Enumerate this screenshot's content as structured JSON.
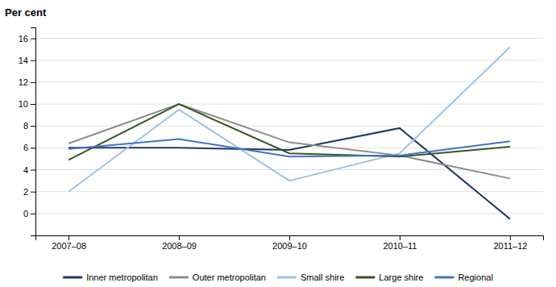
{
  "chart_data": {
    "type": "line",
    "ylabel": "Per cent",
    "categories": [
      "2007–08",
      "2008–09",
      "2009–10",
      "2010–11",
      "2011–12"
    ],
    "series": [
      {
        "name": "Inner metropolitan",
        "color": "#1f3864",
        "values": [
          6.0,
          6.0,
          5.8,
          7.8,
          -0.5
        ]
      },
      {
        "name": "Outer metropolitan",
        "color": "#8c8c8c",
        "values": [
          6.4,
          10.0,
          6.5,
          5.3,
          3.2
        ]
      },
      {
        "name": "Small shire",
        "color": "#9dc3e6",
        "values": [
          2.0,
          9.5,
          3.0,
          5.5,
          15.2
        ]
      },
      {
        "name": "Large shire",
        "color": "#375623",
        "values": [
          4.9,
          10.0,
          5.5,
          5.2,
          6.1
        ]
      },
      {
        "name": "Regional",
        "color": "#4472c4",
        "values": [
          5.9,
          6.8,
          5.2,
          5.3,
          6.6
        ]
      }
    ],
    "ylim": [
      -2,
      17
    ],
    "yticks": [
      0,
      2,
      4,
      6,
      8,
      10,
      12,
      14,
      16
    ],
    "grid": true,
    "legend": "bottom"
  }
}
